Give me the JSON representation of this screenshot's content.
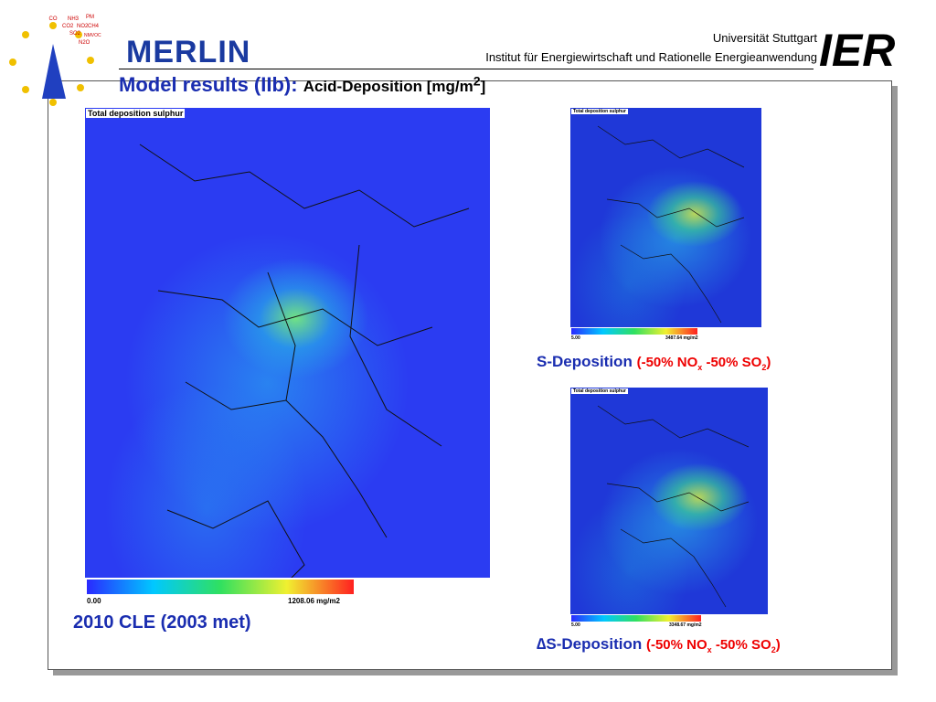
{
  "header": {
    "logo_gases": [
      "CO",
      "NH3",
      "PM",
      "CO2",
      "NO2",
      "CH4",
      "SO2",
      "NMVOC",
      "N2O"
    ],
    "merlin": "MERLIN",
    "university": "Universität Stuttgart",
    "institute": "Institut für Energiewirtschaft und Rationelle Energieanwendung",
    "ier": "IER"
  },
  "title": {
    "main": "Model results (IIb):",
    "sub": "Acid-Deposition [mg/m",
    "sup": "2",
    "end": "]"
  },
  "maps": [
    {
      "label": "Total deposition sulphur",
      "scale_min": "0.00",
      "scale_max": "1208.06 mg/m2",
      "caption": "2010 CLE (2003 met)"
    },
    {
      "label": "Total deposition sulphur",
      "scale_min": "5.00",
      "scale_max": "3487.64 mg/m2",
      "caption": {
        "name": "S-Deposition",
        "open": "(-50% NO",
        "sub1": "x",
        "mid": "-50% SO",
        "sub2": "2",
        "close": ")"
      }
    },
    {
      "label": "Total deposition sulphur",
      "scale_min": "5.00",
      "scale_max": "3348.67 mg/m2",
      "caption": {
        "name": "∆S-Deposition",
        "open": "(-50% NO",
        "sub1": "x",
        "mid": "-50% SO",
        "sub2": "2",
        "close": ")"
      }
    }
  ]
}
